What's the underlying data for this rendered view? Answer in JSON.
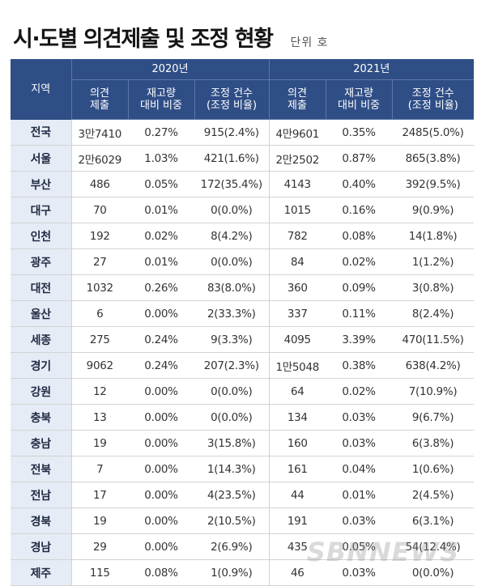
{
  "title": "시·도별 의견제출 및 조정 현황",
  "unit": "단위 호",
  "header": {
    "region": "지역",
    "year1": "2020년",
    "year2": "2021년",
    "col_submit": [
      "의견",
      "제출"
    ],
    "col_ratio": [
      "재고량",
      "대비 비중"
    ],
    "col_adjust": [
      "조정 건수",
      "(조정 비율)"
    ]
  },
  "rows": [
    {
      "region": "전국",
      "y20_submit": "3만7410",
      "y20_ratio": "0.27%",
      "y20_adjust": "915(2.4%)",
      "y21_submit": "4만9601",
      "y21_ratio": "0.35%",
      "y21_adjust": "2485(5.0%)"
    },
    {
      "region": "서울",
      "y20_submit": "2만6029",
      "y20_ratio": "1.03%",
      "y20_adjust": "421(1.6%)",
      "y21_submit": "2만2502",
      "y21_ratio": "0.87%",
      "y21_adjust": "865(3.8%)"
    },
    {
      "region": "부산",
      "y20_submit": "486",
      "y20_ratio": "0.05%",
      "y20_adjust": "172(35.4%)",
      "y21_submit": "4143",
      "y21_ratio": "0.40%",
      "y21_adjust": "392(9.5%)"
    },
    {
      "region": "대구",
      "y20_submit": "70",
      "y20_ratio": "0.01%",
      "y20_adjust": "0(0.0%)",
      "y21_submit": "1015",
      "y21_ratio": "0.16%",
      "y21_adjust": "9(0.9%)"
    },
    {
      "region": "인천",
      "y20_submit": "192",
      "y20_ratio": "0.02%",
      "y20_adjust": "8(4.2%)",
      "y21_submit": "782",
      "y21_ratio": "0.08%",
      "y21_adjust": "14(1.8%)"
    },
    {
      "region": "광주",
      "y20_submit": "27",
      "y20_ratio": "0.01%",
      "y20_adjust": "0(0.0%)",
      "y21_submit": "84",
      "y21_ratio": "0.02%",
      "y21_adjust": "1(1.2%)"
    },
    {
      "region": "대전",
      "y20_submit": "1032",
      "y20_ratio": "0.26%",
      "y20_adjust": "83(8.0%)",
      "y21_submit": "360",
      "y21_ratio": "0.09%",
      "y21_adjust": "3(0.8%)"
    },
    {
      "region": "울산",
      "y20_submit": "6",
      "y20_ratio": "0.00%",
      "y20_adjust": "2(33.3%)",
      "y21_submit": "337",
      "y21_ratio": "0.11%",
      "y21_adjust": "8(2.4%)"
    },
    {
      "region": "세종",
      "y20_submit": "275",
      "y20_ratio": "0.24%",
      "y20_adjust": "9(3.3%)",
      "y21_submit": "4095",
      "y21_ratio": "3.39%",
      "y21_adjust": "470(11.5%)"
    },
    {
      "region": "경기",
      "y20_submit": "9062",
      "y20_ratio": "0.24%",
      "y20_adjust": "207(2.3%)",
      "y21_submit": "1만5048",
      "y21_ratio": "0.38%",
      "y21_adjust": "638(4.2%)"
    },
    {
      "region": "강원",
      "y20_submit": "12",
      "y20_ratio": "0.00%",
      "y20_adjust": "0(0.0%)",
      "y21_submit": "64",
      "y21_ratio": "0.02%",
      "y21_adjust": "7(10.9%)"
    },
    {
      "region": "충북",
      "y20_submit": "13",
      "y20_ratio": "0.00%",
      "y20_adjust": "0(0.0%)",
      "y21_submit": "134",
      "y21_ratio": "0.03%",
      "y21_adjust": "9(6.7%)"
    },
    {
      "region": "충남",
      "y20_submit": "19",
      "y20_ratio": "0.00%",
      "y20_adjust": "3(15.8%)",
      "y21_submit": "160",
      "y21_ratio": "0.03%",
      "y21_adjust": "6(3.8%)"
    },
    {
      "region": "전북",
      "y20_submit": "7",
      "y20_ratio": "0.00%",
      "y20_adjust": "1(14.3%)",
      "y21_submit": "161",
      "y21_ratio": "0.04%",
      "y21_adjust": "1(0.6%)"
    },
    {
      "region": "전남",
      "y20_submit": "17",
      "y20_ratio": "0.00%",
      "y20_adjust": "4(23.5%)",
      "y21_submit": "44",
      "y21_ratio": "0.01%",
      "y21_adjust": "2(4.5%)"
    },
    {
      "region": "경북",
      "y20_submit": "19",
      "y20_ratio": "0.00%",
      "y20_adjust": "2(10.5%)",
      "y21_submit": "191",
      "y21_ratio": "0.03%",
      "y21_adjust": "6(3.1%)"
    },
    {
      "region": "경남",
      "y20_submit": "29",
      "y20_ratio": "0.00%",
      "y20_adjust": "2(6.9%)",
      "y21_submit": "435",
      "y21_ratio": "0.05%",
      "y21_adjust": "54(12.4%)"
    },
    {
      "region": "제주",
      "y20_submit": "115",
      "y20_ratio": "0.08%",
      "y20_adjust": "1(0.9%)",
      "y21_submit": "46",
      "y21_ratio": "0.03%",
      "y21_adjust": "0(0.0%)"
    }
  ],
  "watermark": "SBNNEWS",
  "colors": {
    "header_bg": "#2f4e86",
    "region_bg": "#e6ecf5"
  }
}
